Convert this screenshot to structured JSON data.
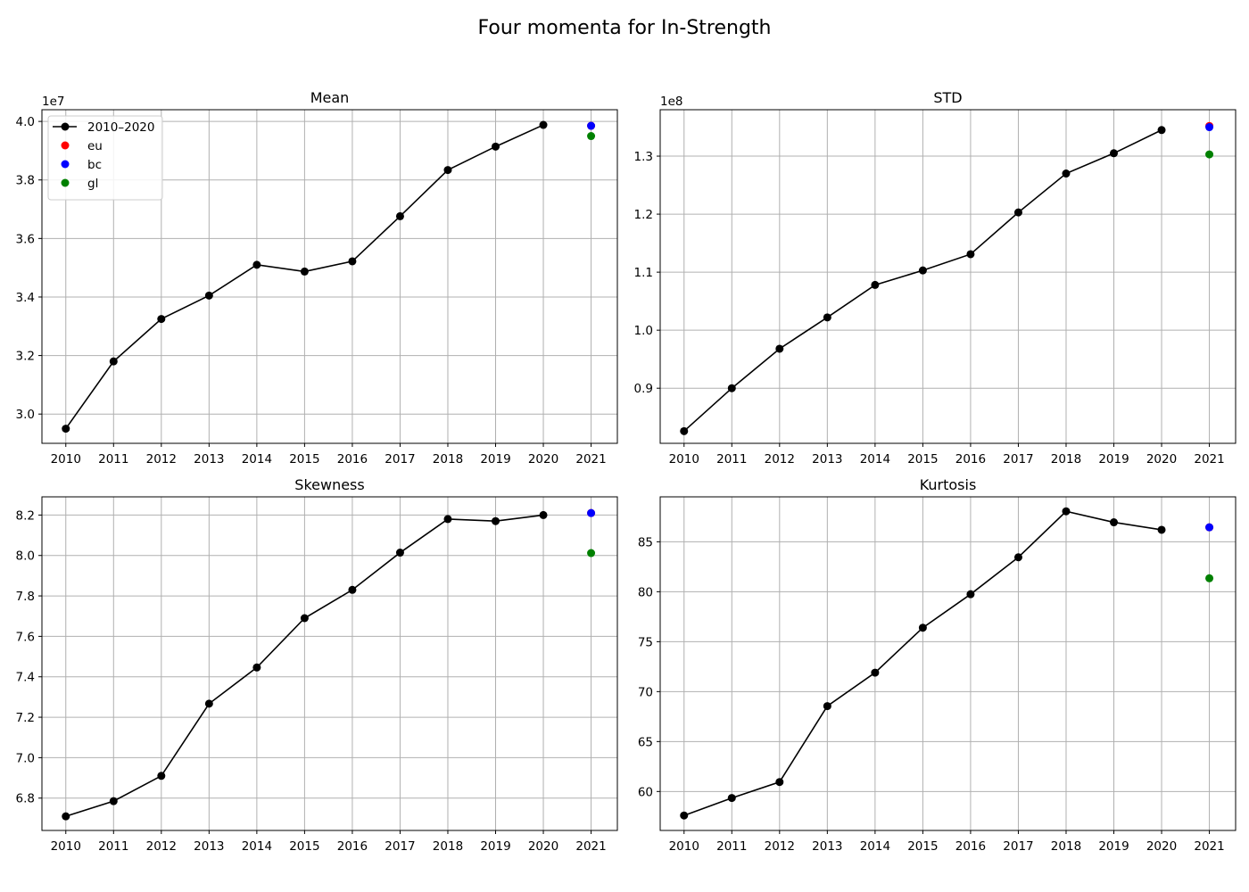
{
  "figure": {
    "title": "Four momenta for In-Strength"
  },
  "chart_data": [
    {
      "type": "line",
      "title": "Mean",
      "xlabel": "",
      "ylabel": "",
      "scale_label": "1e7",
      "x": [
        2010,
        2011,
        2012,
        2013,
        2014,
        2015,
        2016,
        2017,
        2018,
        2019,
        2020
      ],
      "x_ticks": [
        2010,
        2011,
        2012,
        2013,
        2014,
        2015,
        2016,
        2017,
        2018,
        2019,
        2020,
        2021
      ],
      "xlim": [
        2009.5,
        2021.55
      ],
      "ylim": [
        2.9,
        4.04
      ],
      "y_ticks": [
        3.0,
        3.2,
        3.4,
        3.6,
        3.8,
        4.0
      ],
      "y_tick_labels": [
        "3.0",
        "3.2",
        "3.4",
        "3.6",
        "3.8",
        "4.0"
      ],
      "grid": true,
      "legend": "upper-left",
      "series": [
        {
          "name": "2010–2020",
          "kind": "line",
          "color": "#000000",
          "values": [
            2.95,
            3.18,
            3.325,
            3.405,
            3.51,
            3.487,
            3.522,
            3.676,
            3.834,
            3.914,
            3.988
          ]
        }
      ],
      "points": [
        {
          "name": "eu",
          "color": "#ff0000",
          "x": 2021,
          "y": 3.985
        },
        {
          "name": "bc",
          "color": "#0000ff",
          "x": 2021,
          "y": 3.985
        },
        {
          "name": "gl",
          "color": "#008000",
          "x": 2021,
          "y": 3.95
        }
      ]
    },
    {
      "type": "line",
      "title": "STD",
      "xlabel": "",
      "ylabel": "",
      "scale_label": "1e8",
      "x": [
        2010,
        2011,
        2012,
        2013,
        2014,
        2015,
        2016,
        2017,
        2018,
        2019,
        2020
      ],
      "x_ticks": [
        2010,
        2011,
        2012,
        2013,
        2014,
        2015,
        2016,
        2017,
        2018,
        2019,
        2020,
        2021
      ],
      "xlim": [
        2009.5,
        2021.55
      ],
      "ylim": [
        0.805,
        1.38
      ],
      "y_ticks": [
        0.9,
        1.0,
        1.1,
        1.2,
        1.3
      ],
      "y_tick_labels": [
        "0.9",
        "1.0",
        "1.1",
        "1.2",
        "1.3"
      ],
      "grid": true,
      "legend": "",
      "series": [
        {
          "name": "2010–2020",
          "kind": "line",
          "color": "#000000",
          "values": [
            0.826,
            0.9,
            0.968,
            1.022,
            1.078,
            1.103,
            1.131,
            1.203,
            1.27,
            1.305,
            1.345
          ]
        }
      ],
      "points": [
        {
          "name": "eu",
          "color": "#ff0000",
          "x": 2021,
          "y": 1.352
        },
        {
          "name": "bc",
          "color": "#0000ff",
          "x": 2021,
          "y": 1.35
        },
        {
          "name": "gl",
          "color": "#008000",
          "x": 2021,
          "y": 1.303
        }
      ]
    },
    {
      "type": "line",
      "title": "Skewness",
      "xlabel": "",
      "ylabel": "",
      "scale_label": "",
      "x": [
        2010,
        2011,
        2012,
        2013,
        2014,
        2015,
        2016,
        2017,
        2018,
        2019,
        2020
      ],
      "x_ticks": [
        2010,
        2011,
        2012,
        2013,
        2014,
        2015,
        2016,
        2017,
        2018,
        2019,
        2020,
        2021
      ],
      "xlim": [
        2009.5,
        2021.55
      ],
      "ylim": [
        6.64,
        8.29
      ],
      "y_ticks": [
        6.8,
        7.0,
        7.2,
        7.4,
        7.6,
        7.8,
        8.0,
        8.2
      ],
      "y_tick_labels": [
        "6.8",
        "7.0",
        "7.2",
        "7.4",
        "7.6",
        "7.8",
        "8.0",
        "8.2"
      ],
      "grid": true,
      "legend": "",
      "series": [
        {
          "name": "2010–2020",
          "kind": "line",
          "color": "#000000",
          "values": [
            6.71,
            6.785,
            6.91,
            7.267,
            7.446,
            7.69,
            7.83,
            8.014,
            8.18,
            8.17,
            8.2
          ]
        }
      ],
      "points": [
        {
          "name": "eu",
          "color": "#ff0000",
          "x": 2021,
          "y": 8.21
        },
        {
          "name": "bc",
          "color": "#0000ff",
          "x": 2021,
          "y": 8.21
        },
        {
          "name": "gl",
          "color": "#008000",
          "x": 2021,
          "y": 8.012
        }
      ]
    },
    {
      "type": "line",
      "title": "Kurtosis",
      "xlabel": "",
      "ylabel": "",
      "scale_label": "",
      "x": [
        2010,
        2011,
        2012,
        2013,
        2014,
        2015,
        2016,
        2017,
        2018,
        2019,
        2020
      ],
      "x_ticks": [
        2010,
        2011,
        2012,
        2013,
        2014,
        2015,
        2016,
        2017,
        2018,
        2019,
        2020,
        2021
      ],
      "xlim": [
        2009.5,
        2021.55
      ],
      "ylim": [
        56.1,
        89.5
      ],
      "y_ticks": [
        60,
        65,
        70,
        75,
        80,
        85
      ],
      "y_tick_labels": [
        "60",
        "65",
        "70",
        "75",
        "80",
        "85"
      ],
      "grid": true,
      "legend": "",
      "series": [
        {
          "name": "2010–2020",
          "kind": "line",
          "color": "#000000",
          "values": [
            57.6,
            59.35,
            60.95,
            68.55,
            71.9,
            76.4,
            79.75,
            83.45,
            88.05,
            86.95,
            86.2
          ]
        }
      ],
      "points": [
        {
          "name": "eu",
          "color": "#ff0000",
          "x": 2021,
          "y": 86.45
        },
        {
          "name": "bc",
          "color": "#0000ff",
          "x": 2021,
          "y": 86.45
        },
        {
          "name": "gl",
          "color": "#008000",
          "x": 2021,
          "y": 81.35
        }
      ]
    }
  ]
}
